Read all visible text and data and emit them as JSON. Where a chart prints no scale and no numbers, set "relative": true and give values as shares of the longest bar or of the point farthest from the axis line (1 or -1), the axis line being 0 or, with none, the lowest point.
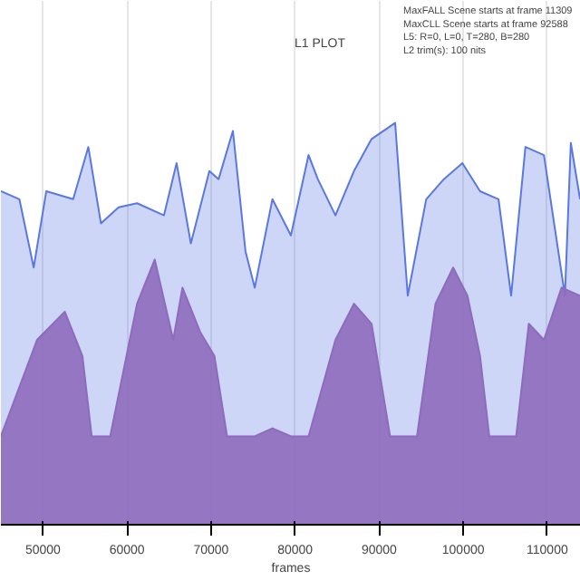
{
  "chart_data": {
    "type": "area",
    "title": "L1 PLOT",
    "xlabel": "frames",
    "relative": true,
    "grid": "x",
    "annotations": [
      "MaxFALL Scene starts at frame 11309",
      "MaxCLL Scene starts at frame 92588",
      "L5: R=0, L=0, T=280, B=280",
      "L2 trim(s): 100 nits"
    ],
    "xlim": [
      45000,
      114000
    ],
    "xticks": [
      50000,
      60000,
      70000,
      80000,
      90000,
      100000,
      110000
    ],
    "series": [
      {
        "color": "#5a78e0",
        "x": [
          45000,
          47200,
          48900,
          50400,
          53600,
          55400,
          56900,
          59000,
          61200,
          64400,
          65900,
          67600,
          69800,
          70900,
          72600,
          74100,
          75200,
          77300,
          79500,
          81600,
          82700,
          84800,
          87000,
          89100,
          91900,
          93400,
          95600,
          97700,
          99900,
          102000,
          104200,
          105700,
          107400,
          109600,
          112100,
          112800,
          113900
        ],
        "values": [
          0.83,
          0.81,
          0.64,
          0.83,
          0.81,
          0.94,
          0.75,
          0.79,
          0.8,
          0.77,
          0.9,
          0.7,
          0.88,
          0.86,
          0.98,
          0.68,
          0.59,
          0.81,
          0.72,
          0.92,
          0.86,
          0.77,
          0.88,
          0.96,
          1.0,
          0.57,
          0.81,
          0.86,
          0.9,
          0.83,
          0.81,
          0.57,
          0.94,
          0.92,
          0.57,
          0.95,
          0.81
        ]
      },
      {
        "color": "#8e6bbd",
        "x": [
          45000,
          49300,
          52600,
          54700,
          55800,
          58000,
          61200,
          63300,
          65500,
          66600,
          68700,
          70400,
          71900,
          75200,
          77300,
          79500,
          81600,
          84800,
          87000,
          89100,
          91300,
          94500,
          96700,
          98800,
          100500,
          102000,
          103100,
          106300,
          107800,
          109600,
          111700,
          113900
        ],
        "values": [
          0.22,
          0.46,
          0.53,
          0.42,
          0.22,
          0.22,
          0.55,
          0.66,
          0.46,
          0.59,
          0.48,
          0.42,
          0.22,
          0.22,
          0.24,
          0.22,
          0.22,
          0.46,
          0.55,
          0.5,
          0.22,
          0.22,
          0.55,
          0.64,
          0.57,
          0.42,
          0.22,
          0.22,
          0.5,
          0.46,
          0.59,
          0.57
        ]
      }
    ]
  }
}
